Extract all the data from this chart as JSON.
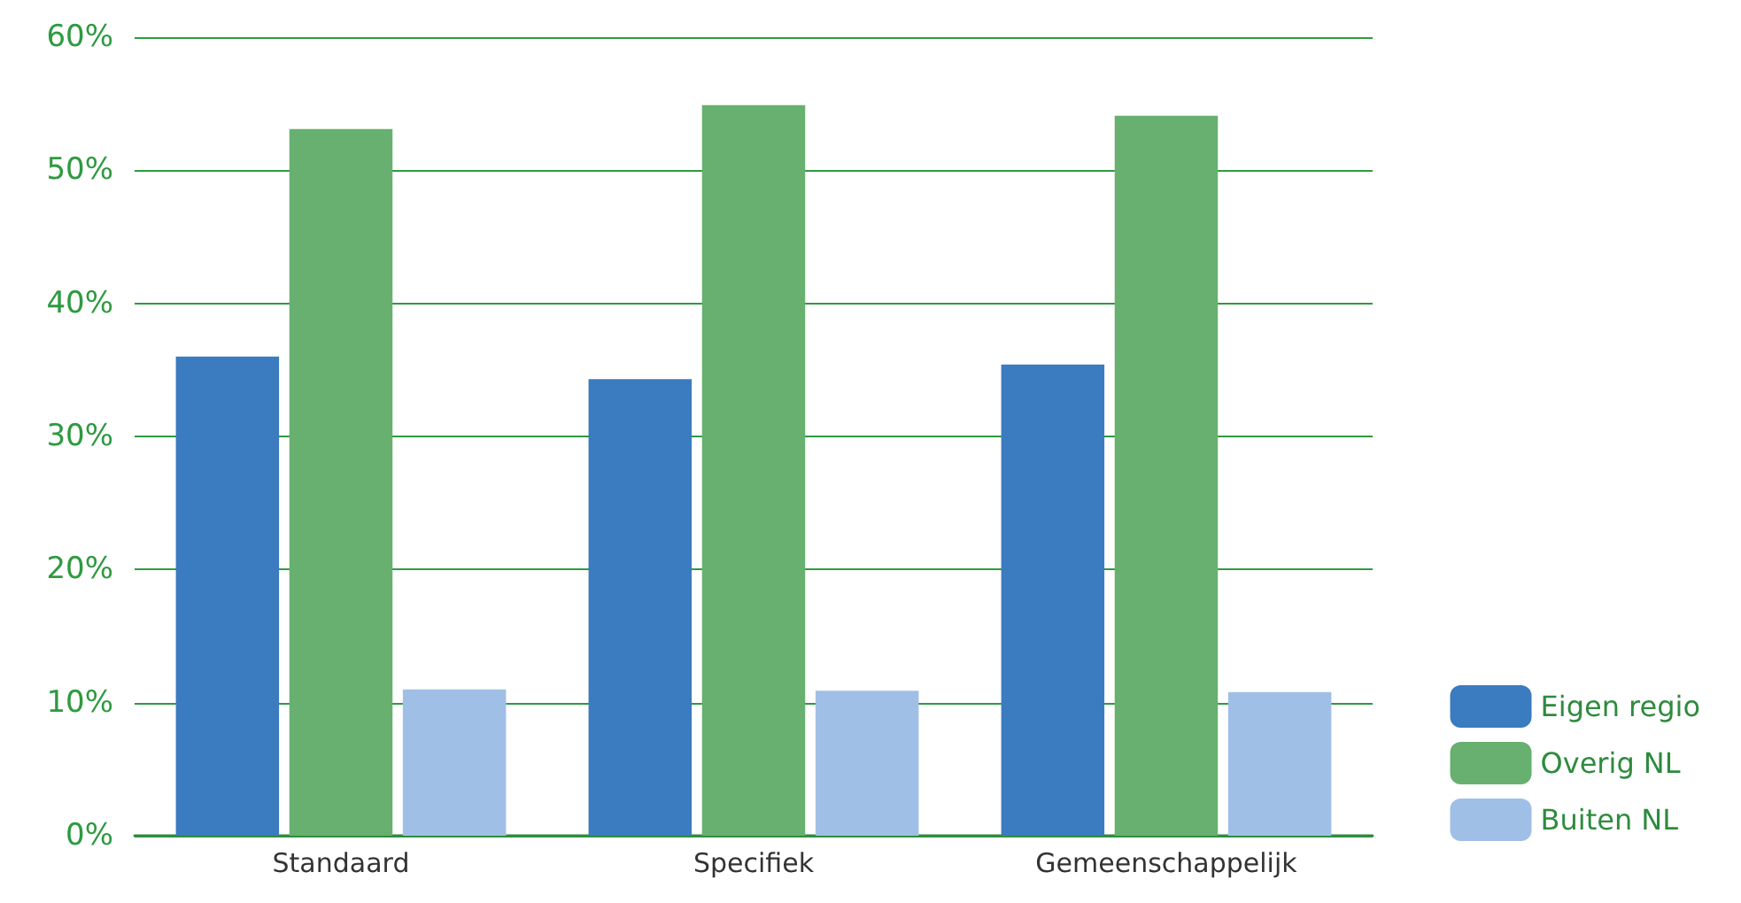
{
  "chart_data": {
    "type": "bar",
    "categories": [
      "Standaard",
      "Specifiek",
      "Gemeenschappelijk"
    ],
    "series": [
      {
        "name": "Eigen regio",
        "color": "#3b7bbf",
        "values": [
          36.0,
          34.3,
          35.4
        ]
      },
      {
        "name": "Overig NL",
        "color": "#67b06f",
        "values": [
          53.1,
          54.9,
          54.1
        ]
      },
      {
        "name": "Buiten NL",
        "color": "#a0bfe6",
        "values": [
          11.0,
          10.9,
          10.8
        ]
      }
    ],
    "ylim": [
      0,
      60
    ],
    "yticks": [
      {
        "value": 0,
        "label": "0%"
      },
      {
        "value": 10,
        "label": "10%"
      },
      {
        "value": 20,
        "label": "20%"
      },
      {
        "value": 30,
        "label": "30%"
      },
      {
        "value": 40,
        "label": "40%"
      },
      {
        "value": 50,
        "label": "50%"
      },
      {
        "value": 60,
        "label": "60%"
      }
    ],
    "grid": "y",
    "legend": "bottom right"
  }
}
